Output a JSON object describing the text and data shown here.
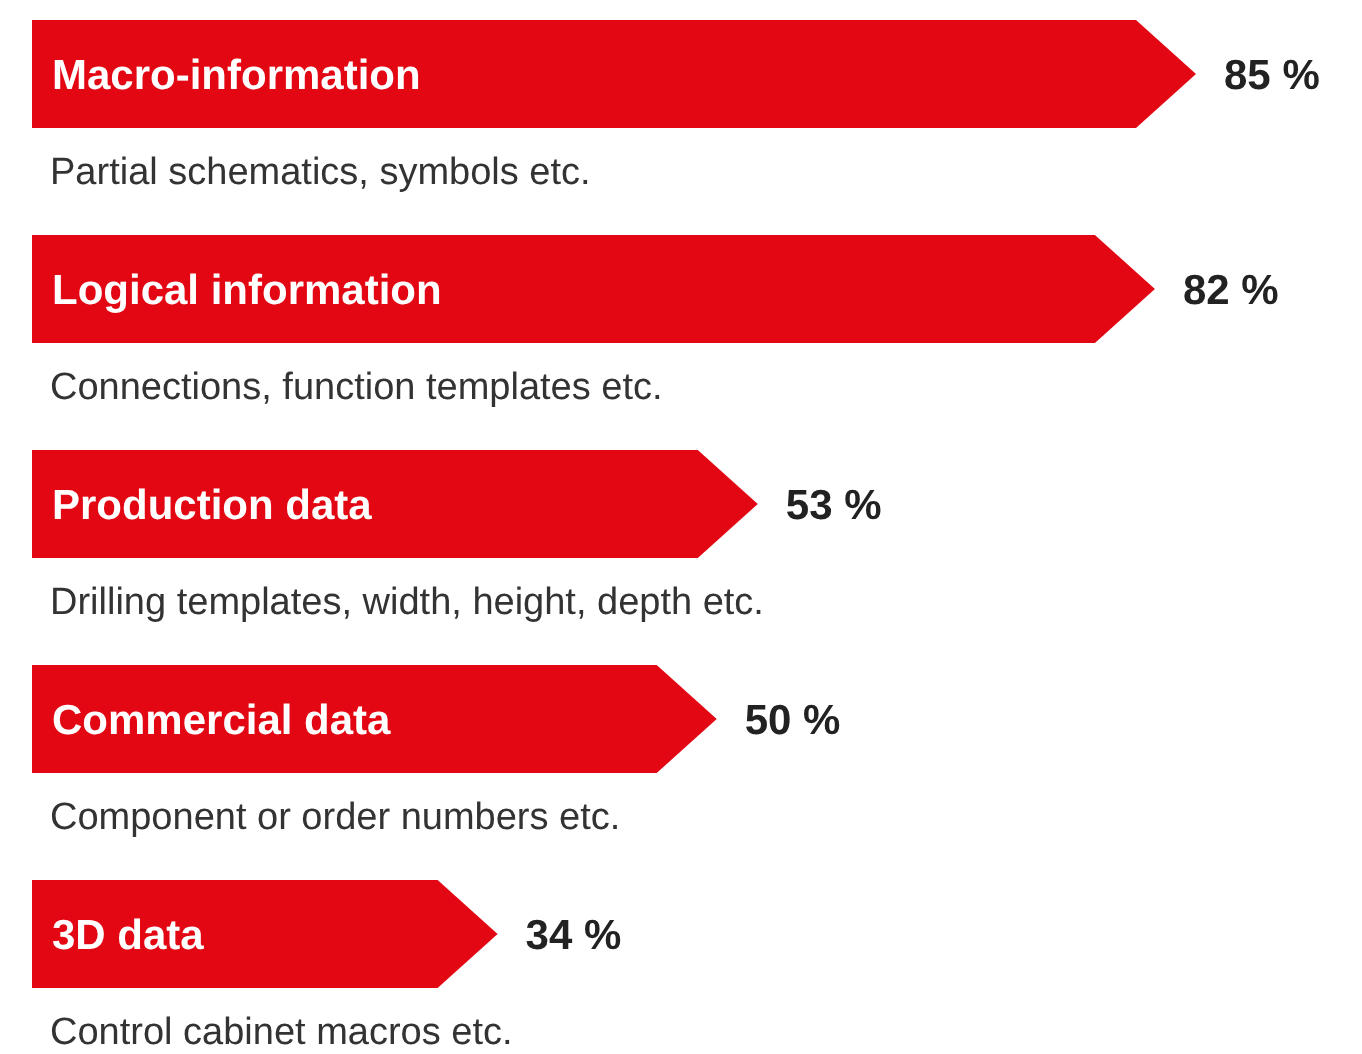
{
  "chart_data": {
    "type": "bar",
    "orientation": "horizontal",
    "color": "#e30613",
    "categories": [
      "Macro-information",
      "Logical information",
      "Production data",
      "Commercial data",
      "3D data"
    ],
    "values": [
      85,
      82,
      53,
      50,
      34
    ],
    "value_labels": [
      "85 %",
      "82 %",
      "53 %",
      "50 %",
      "34 %"
    ],
    "annotations": [
      "Partial schematics, symbols etc.",
      "Connections, function templates etc.",
      "Drilling templates, width, height, depth etc.",
      "Component or order numbers etc.",
      "Control cabinet macros etc."
    ]
  }
}
